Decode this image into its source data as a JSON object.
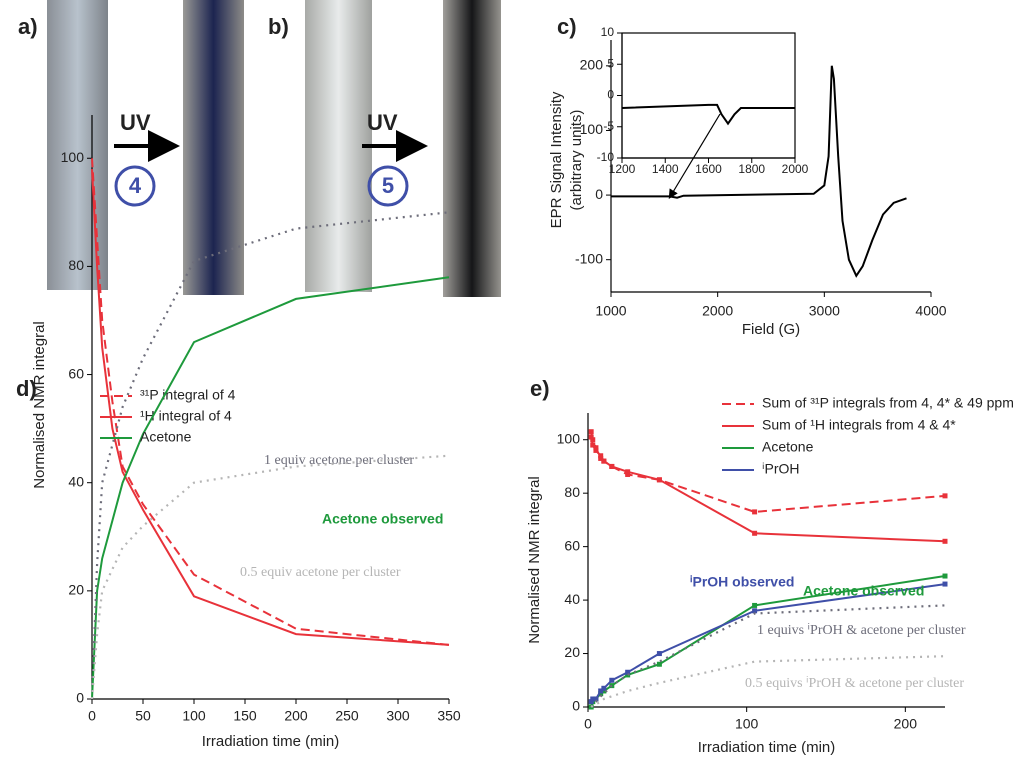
{
  "photo_panels": [
    {
      "label": "a)",
      "arrow_label": "UV",
      "compound": "4"
    },
    {
      "label": "b)",
      "arrow_label": "UV",
      "compound": "5"
    }
  ],
  "chart_data": [
    {
      "type": "line",
      "panel_label": "c)",
      "xlabel": "Field (G)",
      "ylabel": [
        "EPR Signal Intensity",
        "(arbitrary units)"
      ],
      "x": [
        1000,
        1550,
        1620,
        1680,
        2900,
        3000,
        3040,
        3070,
        3090,
        3130,
        3170,
        3230,
        3300,
        3360,
        3450,
        3550,
        3650,
        3770
      ],
      "series": [
        {
          "name": null,
          "color": "#000000",
          "dash": "solid",
          "values": [
            -2,
            -2,
            -4,
            -1,
            2,
            15,
            60,
            200,
            180,
            60,
            -40,
            -100,
            -125,
            -110,
            -70,
            -30,
            -12,
            -5
          ]
        }
      ],
      "xlim": [
        1000,
        4000
      ],
      "xticks": [
        1000,
        2000,
        3000,
        4000
      ],
      "ylim": [
        -150,
        240
      ],
      "yticks": [
        -100,
        0,
        100,
        200
      ],
      "frame": "axes"
    },
    {
      "type": "line",
      "x": [
        1200,
        1600,
        1640,
        1660,
        1690,
        1720,
        1750,
        2000
      ],
      "series": [
        {
          "name": null,
          "color": "#000000",
          "dash": "solid",
          "values": [
            -2,
            -1.5,
            -1.5,
            -3,
            -4.5,
            -3,
            -2,
            -2
          ]
        }
      ],
      "xlim": [
        1200,
        2000
      ],
      "xticks": [
        1200,
        1400,
        1600,
        1800,
        2000
      ],
      "ylim": [
        -10,
        10
      ],
      "yticks": [
        -10,
        -5,
        0,
        5,
        10
      ],
      "frame": "box"
    },
    {
      "type": "line",
      "panel_label": "d)",
      "xlabel": "Irradiation time (min)",
      "ylabel": [
        "Normalised NMR integral"
      ],
      "x": [
        0,
        5,
        10,
        20,
        30,
        50,
        100,
        200,
        350
      ],
      "series": [
        {
          "name": "³¹P integral of 4",
          "color": "#e8323a",
          "dash": "dashed",
          "values": [
            100,
            85,
            70,
            55,
            43,
            36,
            23,
            13,
            10
          ]
        },
        {
          "name": "¹H integral of 4",
          "color": "#e8323a",
          "dash": "solid",
          "values": [
            98,
            80,
            65,
            50,
            42,
            35,
            19,
            12,
            10
          ]
        },
        {
          "name": "Acetone",
          "color": "#1e9a3c",
          "dash": "solid",
          "values": [
            0,
            20,
            26,
            33,
            40,
            49,
            66,
            74,
            78
          ]
        },
        {
          "name": "1 equiv acetone per cluster",
          "color": "#6d6d7a",
          "dash": "dotted",
          "in_legend": false,
          "values": [
            0,
            25,
            40,
            47,
            54,
            63,
            81,
            87,
            90
          ]
        },
        {
          "name": "0.5 equiv acetone per cluster",
          "color": "#b5b5b5",
          "dash": "dotted",
          "in_legend": false,
          "values": [
            0,
            12,
            20,
            24,
            28,
            32,
            40,
            43,
            45
          ]
        }
      ],
      "annotations": [
        {
          "text": "Acetone observed",
          "color": "#1e9a3c"
        }
      ],
      "xlim": [
        0,
        350
      ],
      "xticks": [
        0,
        50,
        100,
        150,
        200,
        250,
        300,
        350
      ],
      "ylim": [
        0,
        108
      ],
      "yticks": [
        0,
        20,
        40,
        60,
        80,
        100
      ],
      "frame": "axes"
    },
    {
      "type": "line",
      "panel_label": "e)",
      "xlabel": "Irradiation time (min)",
      "ylabel": [
        "Normalised NMR integral"
      ],
      "x": [
        2,
        3,
        5,
        8,
        10,
        15,
        25,
        45,
        105,
        225
      ],
      "series": [
        {
          "name": "Sum of ³¹P integrals from 4, 4* & 49 ppm",
          "color": "#e8323a",
          "dash": "dashed",
          "markers": true,
          "values": [
            103,
            100,
            97,
            93,
            92,
            90,
            87,
            85,
            73,
            79
          ]
        },
        {
          "name": "Sum of ¹H integrals from 4 & 4*",
          "color": "#e8323a",
          "dash": "solid",
          "markers": true,
          "values": [
            101,
            98,
            96,
            94,
            92,
            90,
            88,
            85,
            65,
            62
          ]
        },
        {
          "name": "Acetone",
          "color": "#1e9a3c",
          "dash": "solid",
          "markers": true,
          "values": [
            0,
            2,
            3,
            5,
            6,
            8,
            12,
            16,
            38,
            49
          ]
        },
        {
          "name": "ⁱPrOH",
          "color": "#3f4fa8",
          "dash": "solid",
          "markers": true,
          "values": [
            2,
            3,
            3,
            6,
            7,
            10,
            13,
            20,
            36,
            46
          ]
        },
        {
          "name": "1 equivs ⁱPrOH & acetone per cluster",
          "color": "#6d6d7a",
          "dash": "dotted",
          "in_legend": false,
          "values": [
            0,
            1,
            2,
            4,
            5,
            8,
            12,
            17,
            35,
            38
          ]
        },
        {
          "name": "0.5 equivs ⁱPrOH & acetone per cluster",
          "color": "#b5b5b5",
          "dash": "dotted",
          "in_legend": false,
          "values": [
            0,
            0.5,
            1,
            2,
            3,
            4,
            6,
            9,
            17,
            19
          ]
        }
      ],
      "annotations": [
        {
          "text": "Acetone observed",
          "color": "#1e9a3c"
        },
        {
          "text": "ⁱPrOH observed",
          "color": "#3f4fa8"
        }
      ],
      "xlim": [
        0,
        225
      ],
      "xticks": [
        0,
        100,
        200
      ],
      "ylim": [
        0,
        110
      ],
      "yticks": [
        0,
        20,
        40,
        60,
        80,
        100
      ],
      "frame": "axes"
    }
  ]
}
